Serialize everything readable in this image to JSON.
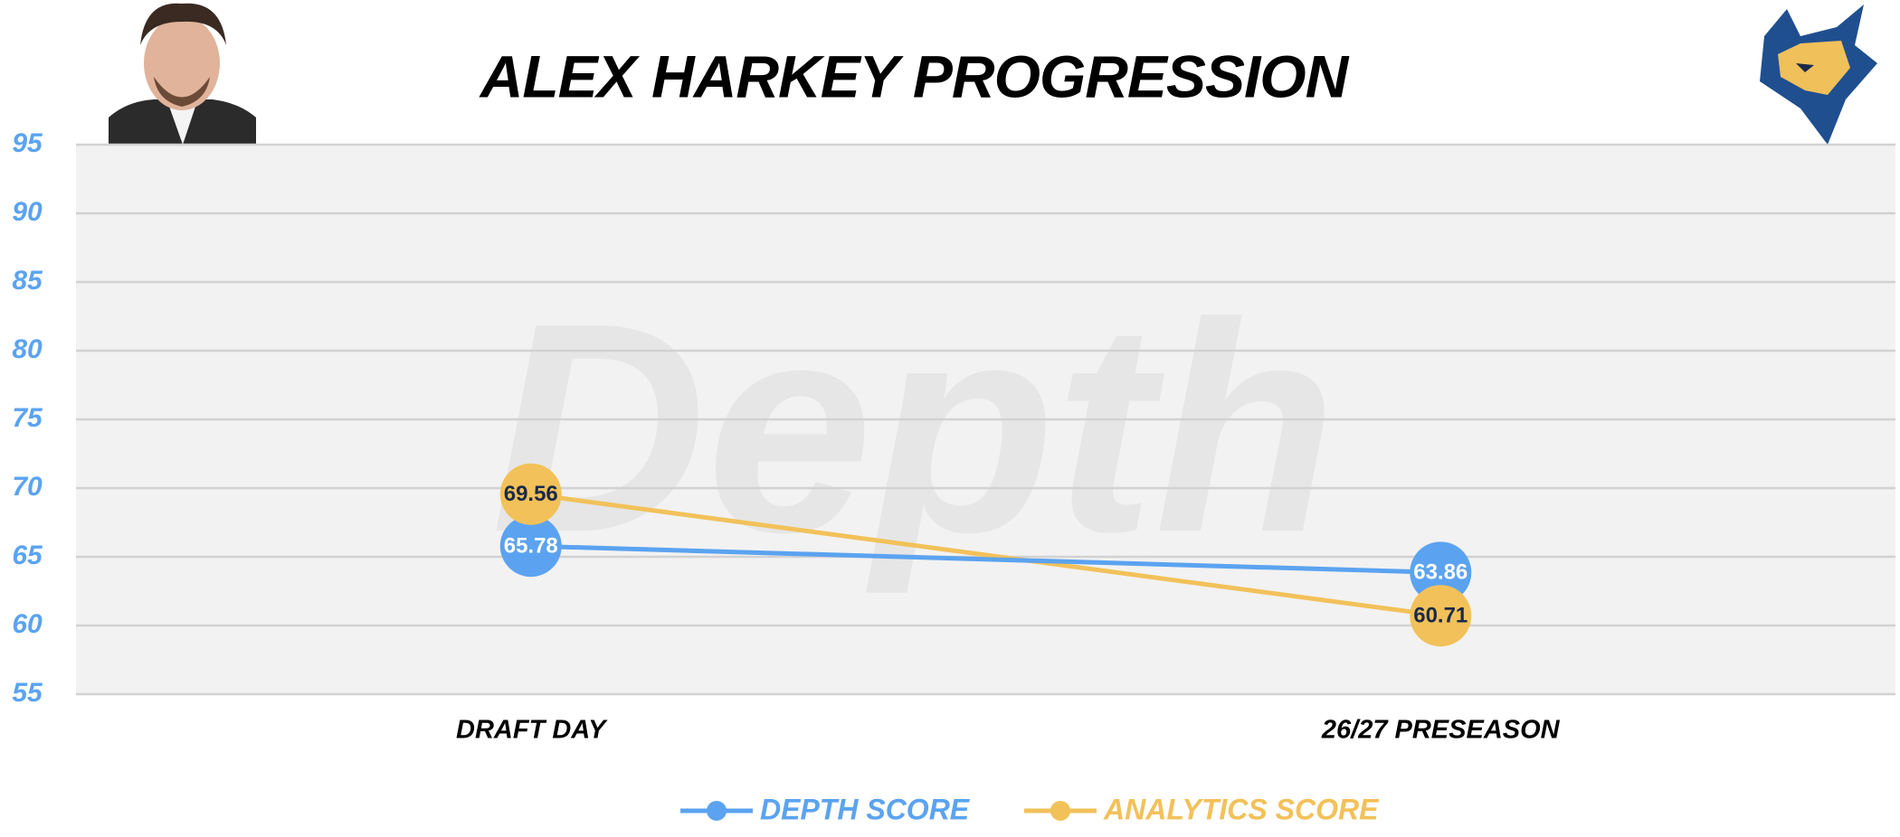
{
  "chart_data": {
    "type": "line",
    "title": "ALEX HARKEY PROGRESSION",
    "watermark": "Depth",
    "categories": [
      "DRAFT DAY",
      "26/27 PRESEASON"
    ],
    "series": [
      {
        "name": "DEPTH SCORE",
        "color": "#5ba3f0",
        "values": [
          65.78,
          63.86
        ]
      },
      {
        "name": "ANALYTICS SCORE",
        "color": "#f2c15a",
        "values": [
          69.56,
          60.71
        ]
      }
    ],
    "ylim": [
      55,
      95
    ],
    "yticks": [
      55,
      60,
      65,
      70,
      75,
      80,
      85,
      90,
      95
    ],
    "grid": true,
    "legend": "bottom"
  }
}
